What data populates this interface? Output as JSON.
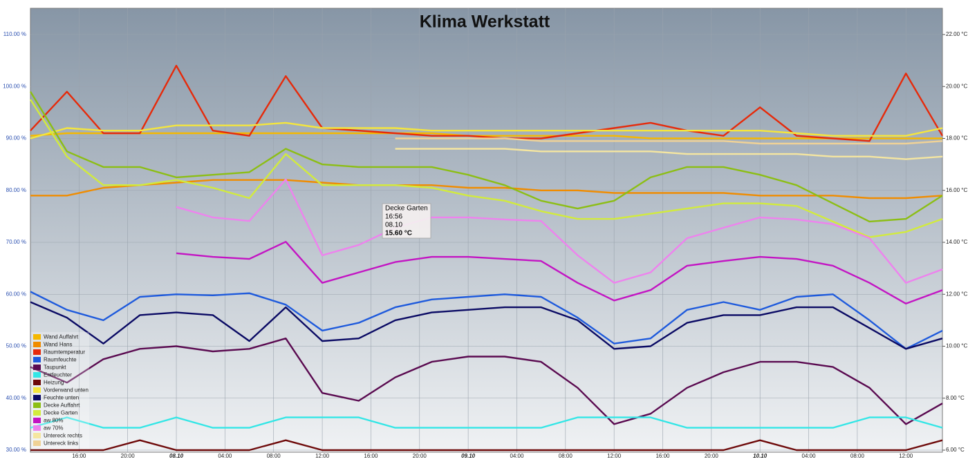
{
  "chart_data": {
    "type": "line",
    "title": "Klima Werkstatt",
    "x": [
      12,
      15,
      18,
      21,
      24,
      27,
      30,
      33,
      36,
      39,
      42,
      45,
      48,
      51,
      54,
      57,
      60,
      63,
      66,
      69,
      72,
      75,
      78,
      81,
      84,
      87
    ],
    "xlim": [
      12,
      87
    ],
    "xticks": [
      {
        "value": 16,
        "label": "16:00"
      },
      {
        "value": 20,
        "label": "20:00"
      },
      {
        "value": 24,
        "label": "08.10"
      },
      {
        "value": 28,
        "label": "04:00"
      },
      {
        "value": 32,
        "label": "08:00"
      },
      {
        "value": 36,
        "label": "12:00"
      },
      {
        "value": 40,
        "label": "16:00"
      },
      {
        "value": 44,
        "label": "20:00"
      },
      {
        "value": 48,
        "label": "09.10"
      },
      {
        "value": 52,
        "label": "04:00"
      },
      {
        "value": 56,
        "label": "08:00"
      },
      {
        "value": 60,
        "label": "12:00"
      },
      {
        "value": 64,
        "label": "16:00"
      },
      {
        "value": 68,
        "label": "20:00"
      },
      {
        "value": 72,
        "label": "10.10"
      },
      {
        "value": 76,
        "label": "04:00"
      },
      {
        "value": 80,
        "label": "08:00"
      },
      {
        "value": 84,
        "label": "12:00"
      }
    ],
    "ylim": [
      30,
      110
    ],
    "yticks": [
      {
        "value": 30,
        "label": "30.00 %"
      },
      {
        "value": 40,
        "label": "40.00 %"
      },
      {
        "value": 50,
        "label": "50.00 %"
      },
      {
        "value": 60,
        "label": "60.00 %"
      },
      {
        "value": 70,
        "label": "70.00 %"
      },
      {
        "value": 80,
        "label": "80.00 %"
      },
      {
        "value": 90,
        "label": "90.00 %"
      },
      {
        "value": 100,
        "label": "100.00 %"
      },
      {
        "value": 110,
        "label": "110.00 %"
      }
    ],
    "y2lim": [
      6,
      22
    ],
    "y2ticks": [
      {
        "value": 6,
        "label": "6.00 °C"
      },
      {
        "value": 8,
        "label": "8.00 °C"
      },
      {
        "value": 10,
        "label": "10.00 °C"
      },
      {
        "value": 12,
        "label": "12.00 °C"
      },
      {
        "value": 14,
        "label": "14.00 °C"
      },
      {
        "value": 16,
        "label": "16.00 °C"
      },
      {
        "value": 18,
        "label": "18.00 °C"
      },
      {
        "value": 20,
        "label": "20.00 °C"
      },
      {
        "value": 22,
        "label": "22.00 °C"
      }
    ],
    "grid": true,
    "legend": "bottom-left",
    "series": [
      {
        "name": "Wand Auffahrt",
        "color": "#f5b800",
        "axis": "y2",
        "values": [
          18.1,
          18.2,
          18.2,
          18.2,
          18.2,
          18.2,
          18.2,
          18.2,
          18.2,
          18.2,
          18.2,
          18.2,
          18.1,
          18.1,
          18.1,
          18.1,
          18.1,
          18.0,
          18.0,
          18.0,
          18.0,
          18.0,
          18.0,
          18.0,
          18.0,
          18.0
        ]
      },
      {
        "name": "Wand Hans",
        "color": "#f08c00",
        "axis": "y2",
        "values": [
          15.8,
          15.8,
          16.1,
          16.2,
          16.3,
          16.4,
          16.4,
          16.4,
          16.3,
          16.2,
          16.2,
          16.2,
          16.1,
          16.1,
          16.0,
          16.0,
          15.9,
          15.9,
          15.9,
          15.9,
          15.8,
          15.8,
          15.8,
          15.7,
          15.7,
          15.8
        ]
      },
      {
        "name": "Raumtemperatur",
        "color": "#e62a0a",
        "axis": "y2",
        "values": [
          18.3,
          19.8,
          18.2,
          18.2,
          20.8,
          18.3,
          18.1,
          20.4,
          18.4,
          18.3,
          18.2,
          18.1,
          18.1,
          18.0,
          18.0,
          18.2,
          18.4,
          18.6,
          18.3,
          18.1,
          19.2,
          18.1,
          18.0,
          17.9,
          20.5,
          18.1
        ]
      },
      {
        "name": "Raumfeuchte",
        "color": "#1e5adc",
        "values": [
          60.5,
          57.0,
          55.0,
          59.5,
          60.0,
          59.8,
          60.2,
          58.0,
          53.0,
          54.5,
          57.5,
          59.0,
          59.5,
          60.0,
          59.5,
          55.5,
          50.5,
          51.5,
          57.0,
          58.5,
          57.0,
          59.5,
          60.0,
          55.0,
          49.5,
          53.0
        ]
      },
      {
        "name": "Taupunkt",
        "color": "#5a0a50",
        "axis": "y2",
        "values": [
          9.2,
          8.6,
          9.5,
          9.9,
          10.0,
          9.8,
          9.9,
          10.3,
          8.2,
          7.9,
          8.8,
          9.4,
          9.6,
          9.6,
          9.4,
          8.4,
          7.0,
          7.4,
          8.4,
          9.0,
          9.4,
          9.4,
          9.2,
          8.4,
          7.0,
          7.8
        ]
      },
      {
        "name": "Entfeuchter",
        "color": "#33e6e6",
        "values": [
          34.3,
          36.3,
          34.3,
          34.3,
          36.3,
          34.3,
          34.3,
          36.3,
          36.3,
          36.3,
          34.3,
          34.3,
          34.3,
          34.3,
          34.3,
          36.3,
          36.3,
          36.3,
          34.3,
          34.3,
          34.3,
          34.3,
          34.3,
          36.3,
          36.3,
          34.3
        ]
      },
      {
        "name": "Heizung",
        "color": "#6e0a0a",
        "values": [
          30,
          30,
          30,
          31.9,
          30,
          30,
          30,
          31.9,
          30,
          30,
          30,
          30,
          30,
          30,
          30,
          30,
          30,
          30,
          30,
          30,
          31.9,
          30,
          30,
          30,
          30,
          31.9
        ]
      },
      {
        "name": "Vorderwand unten",
        "color": "#f5e63c",
        "axis": "y2",
        "values": [
          18.0,
          18.4,
          18.3,
          18.3,
          18.5,
          18.5,
          18.5,
          18.6,
          18.4,
          18.4,
          18.4,
          18.3,
          18.3,
          18.3,
          18.3,
          18.3,
          18.3,
          18.3,
          18.3,
          18.3,
          18.3,
          18.2,
          18.1,
          18.1,
          18.1,
          18.4
        ]
      },
      {
        "name": "Feuchte unten",
        "color": "#0a0a64",
        "values": [
          58.5,
          55.5,
          50.5,
          56.0,
          56.5,
          56.0,
          51.0,
          57.5,
          51.0,
          51.5,
          55.0,
          56.5,
          57.0,
          57.5,
          57.5,
          55.0,
          49.5,
          50.0,
          54.5,
          56.0,
          56.0,
          57.5,
          57.5,
          53.5,
          49.5,
          51.5
        ]
      },
      {
        "name": "Decke Auffahrt",
        "color": "#8cbe14",
        "axis": "y2",
        "values": [
          19.8,
          17.5,
          16.9,
          16.9,
          16.5,
          16.6,
          16.7,
          17.6,
          17.0,
          16.9,
          16.9,
          16.9,
          16.6,
          16.2,
          15.6,
          15.3,
          15.6,
          16.5,
          16.9,
          16.9,
          16.6,
          16.2,
          15.5,
          14.8,
          14.9,
          15.8
        ]
      },
      {
        "name": "Decke Garten",
        "color": "#d2eb3c",
        "axis": "y2",
        "values": [
          19.5,
          17.3,
          16.2,
          16.2,
          16.4,
          16.1,
          15.7,
          17.4,
          16.2,
          16.2,
          16.2,
          16.1,
          15.8,
          15.6,
          15.2,
          14.9,
          14.9,
          15.1,
          15.3,
          15.5,
          15.5,
          15.4,
          14.8,
          14.2,
          14.4,
          14.9
        ]
      },
      {
        "name": "aw 80%",
        "color": "#c314c3",
        "values": [
          null,
          null,
          null,
          null,
          67.9,
          67.2,
          66.8,
          70.1,
          62.2,
          64.2,
          66.2,
          67.2,
          67.2,
          66.8,
          66.4,
          62.2,
          58.8,
          60.8,
          65.5,
          66.4,
          67.2,
          66.8,
          65.5,
          62.2,
          58.2,
          60.8
        ]
      },
      {
        "name": "aw 70%",
        "color": "#ee82ee",
        "values": [
          null,
          null,
          null,
          null,
          76.8,
          74.8,
          74.1,
          82.1,
          67.5,
          69.5,
          72.8,
          74.8,
          74.8,
          74.4,
          74.1,
          67.5,
          62.2,
          64.2,
          70.8,
          72.8,
          74.8,
          74.4,
          73.5,
          70.8,
          62.2,
          64.8
        ]
      },
      {
        "name": "Untereck rechts",
        "color": "#f5e6a0",
        "axis": "y2",
        "values": [
          null,
          null,
          null,
          null,
          null,
          null,
          null,
          null,
          null,
          null,
          17.6,
          17.6,
          17.6,
          17.6,
          17.5,
          17.5,
          17.5,
          17.5,
          17.4,
          17.4,
          17.4,
          17.4,
          17.3,
          17.3,
          17.2,
          17.3
        ]
      },
      {
        "name": "Untereck links",
        "color": "#f0d296",
        "axis": "y2",
        "values": [
          null,
          null,
          null,
          null,
          null,
          null,
          null,
          null,
          null,
          null,
          18.0,
          18.0,
          18.0,
          18.0,
          17.9,
          17.9,
          17.9,
          17.9,
          17.9,
          17.9,
          17.8,
          17.8,
          17.8,
          17.8,
          17.8,
          17.9
        ]
      }
    ],
    "tooltip": {
      "series": "Decke Garten",
      "time": "16:56",
      "date": "08.10",
      "value": {
        "value": 15.6,
        "label": "15.60 °C"
      }
    }
  }
}
